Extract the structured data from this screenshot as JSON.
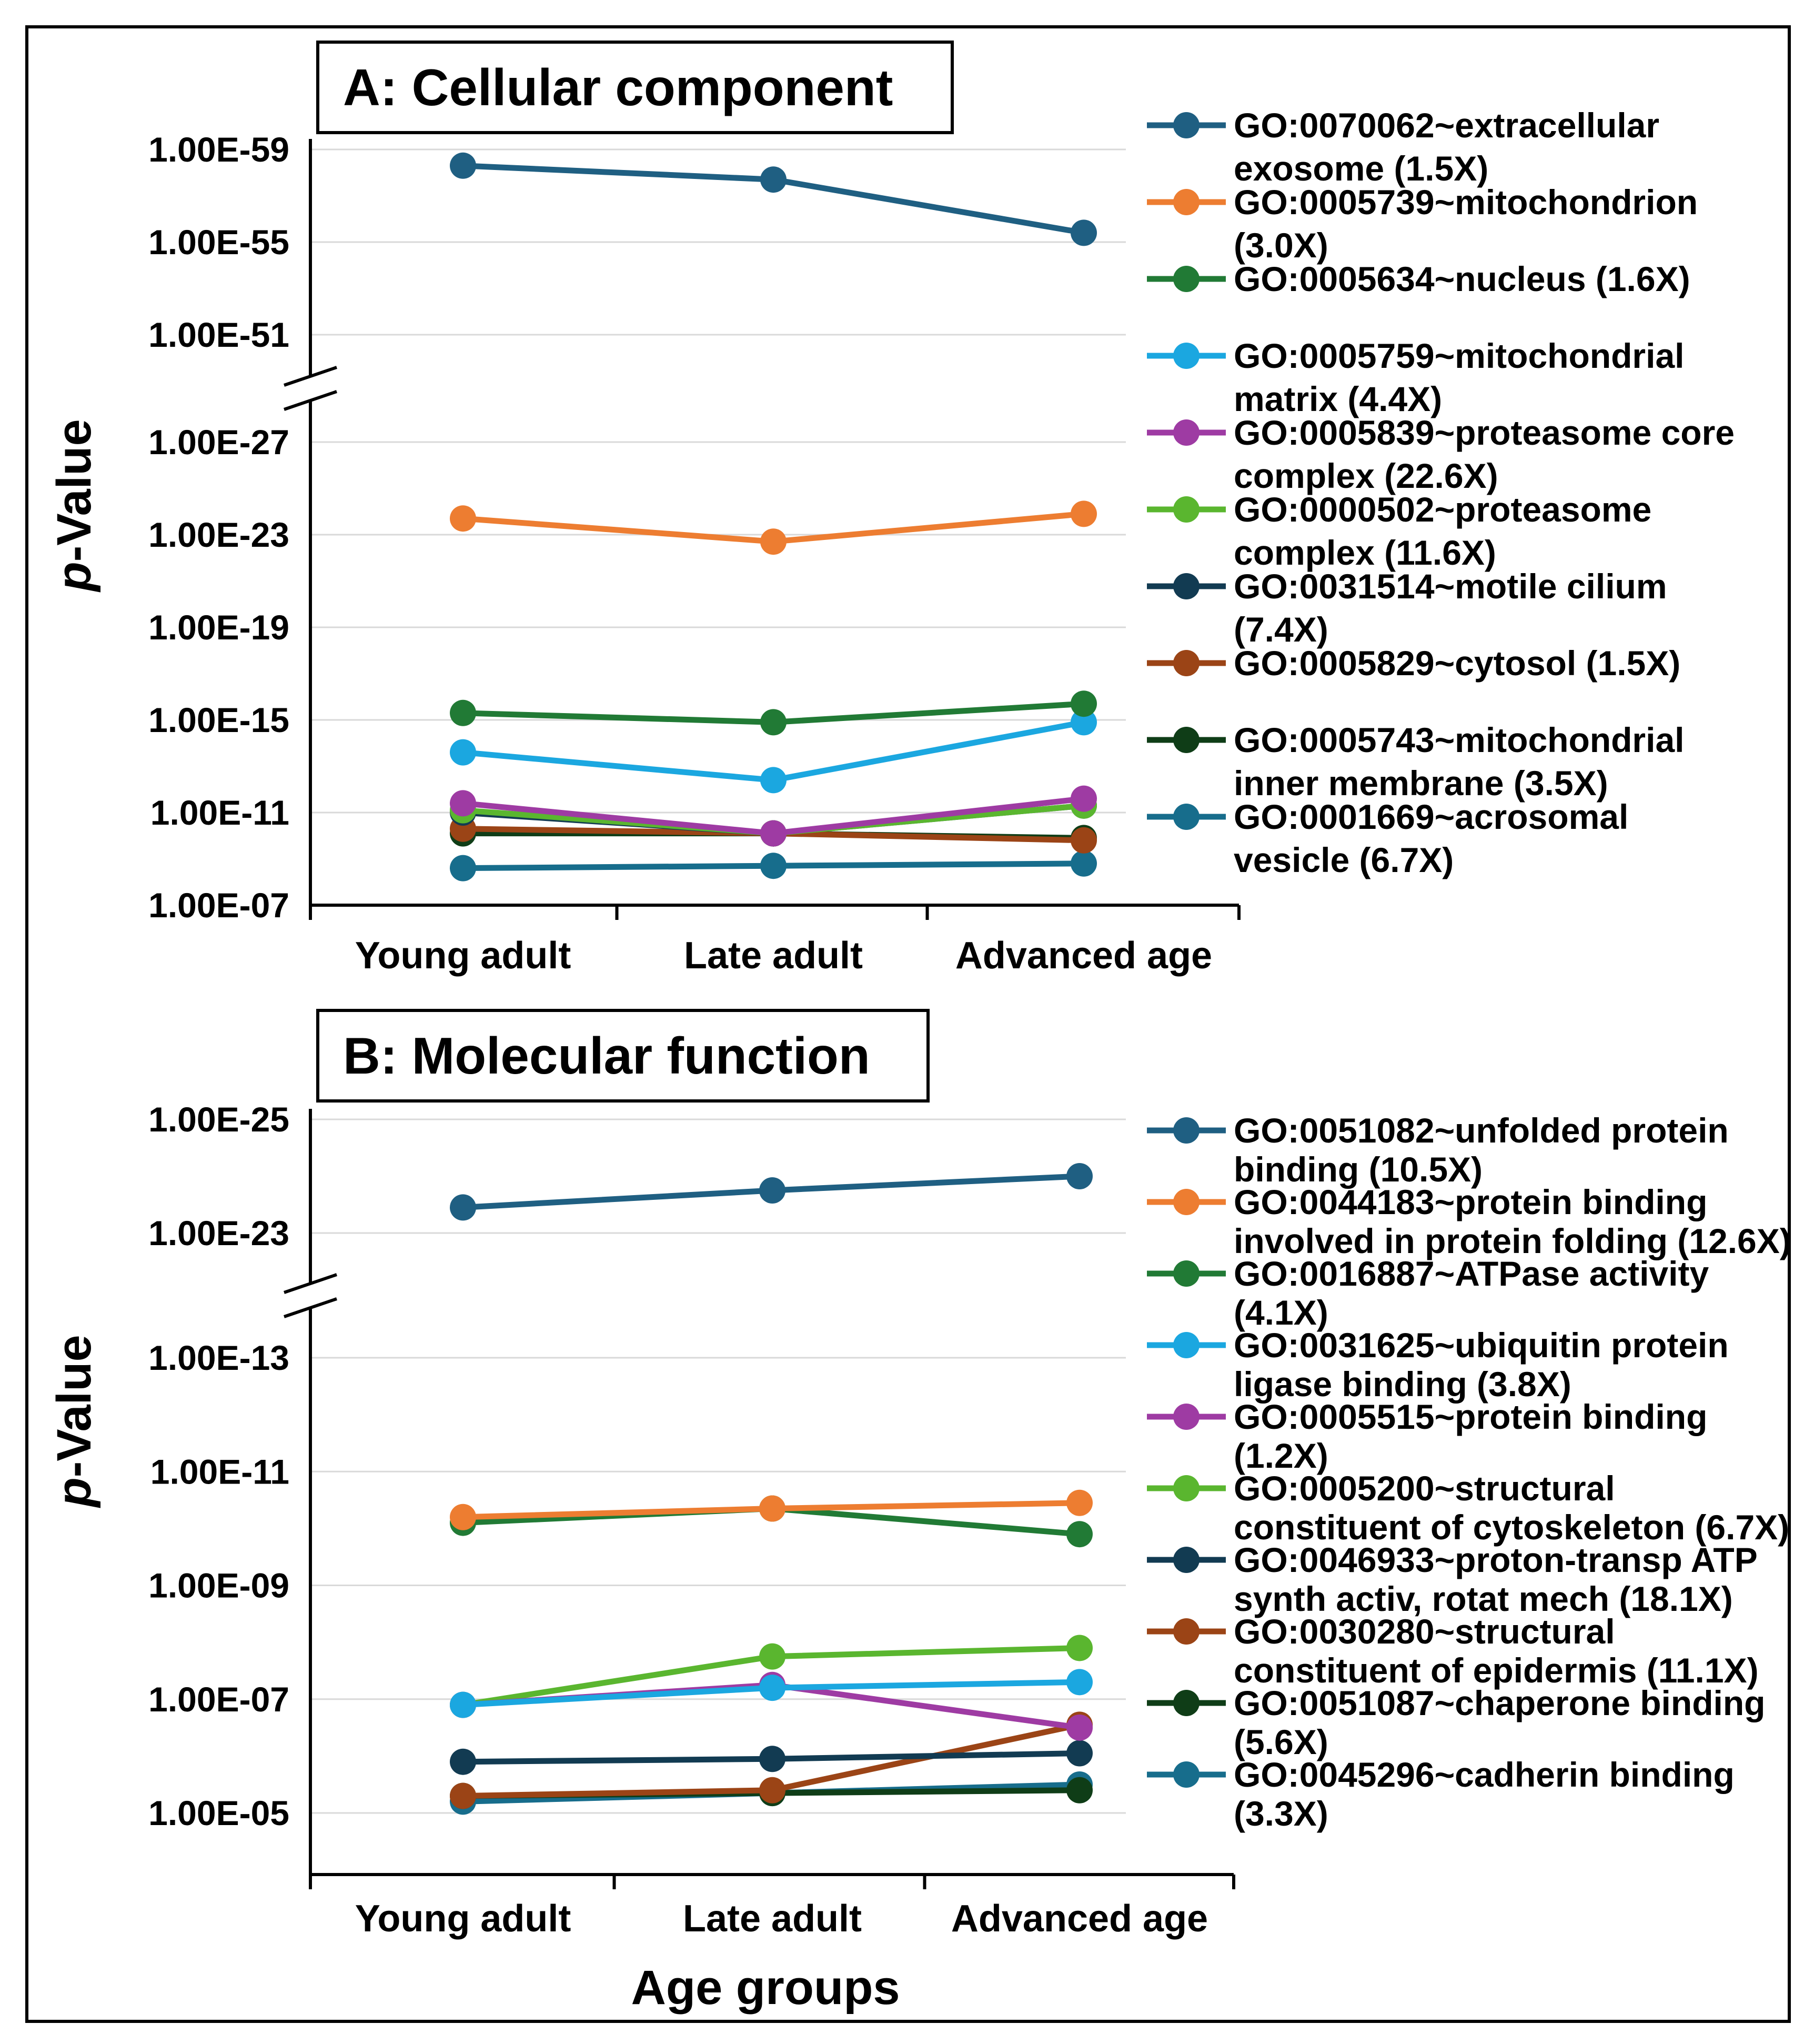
{
  "figure": {
    "xlabel": "Age groups",
    "ylabel_prefix": "p",
    "ylabel_suffix": "-Value"
  },
  "chart_data": [
    {
      "type": "line",
      "title": "A: Cellular component",
      "categories": [
        "Young adult",
        "Late adult",
        "Advanced age"
      ],
      "ylabel": "p-Value",
      "y_scale": "log (-log10 p), broken axis",
      "ylim": [
        7,
        59
      ],
      "y_break": [
        51,
        28.5
      ],
      "ticks_lower": [
        "1.00E-07",
        "1.00E-11",
        "1.00E-15",
        "1.00E-19",
        "1.00E-23",
        "1.00E-27"
      ],
      "ticks_upper": [
        "1.00E-51",
        "1.00E-55",
        "1.00E-59"
      ],
      "series": [
        {
          "name": "GO:0070062~extracellular exosome (1.5X)",
          "legend_lines": [
            "GO:0070062~extracellular",
            "exosome (1.5X)"
          ],
          "color": "#1f5f82",
          "values": [
            58.3,
            57.7,
            55.4
          ]
        },
        {
          "name": "GO:0005739~mitochondrion (3.0X)",
          "legend_lines": [
            "GO:0005739~mitochondrion",
            "(3.0X)"
          ],
          "color": "#ed7d31",
          "values": [
            23.7,
            22.7,
            23.9
          ]
        },
        {
          "name": "GO:0005634~nucleus (1.6X)",
          "legend_lines": [
            "GO:0005634~nucleus (1.6X)"
          ],
          "color": "#217a35",
          "values": [
            15.3,
            14.9,
            15.7
          ]
        },
        {
          "name": "GO:0005759~mitochondrial matrix (4.4X)",
          "legend_lines": [
            "GO:0005759~mitochondrial",
            "matrix (4.4X)"
          ],
          "color": "#1ba7e0",
          "values": [
            13.6,
            12.4,
            14.9
          ]
        },
        {
          "name": "GO:0005839~proteasome core complex (22.6X)",
          "legend_lines": [
            "GO:0005839~proteasome core",
            "complex (22.6X)"
          ],
          "color": "#9e3ba3",
          "values": [
            11.4,
            10.1,
            11.6
          ]
        },
        {
          "name": "GO:0000502~proteasome complex (11.6X)",
          "legend_lines": [
            "GO:0000502~proteasome",
            "complex (11.6X)"
          ],
          "color": "#5ab62f",
          "values": [
            11.1,
            10.1,
            11.3
          ]
        },
        {
          "name": "GO:0031514~motile cilium (7.4X)",
          "legend_lines": [
            "GO:0031514~motile cilium",
            "(7.4X)"
          ],
          "color": "#123b52",
          "values": [
            11.0,
            10.1,
            11.3
          ]
        },
        {
          "name": "GO:0005829~cytosol (1.5X)",
          "legend_lines": [
            "GO:0005829~cytosol (1.5X)"
          ],
          "color": "#9b4416",
          "values": [
            10.3,
            10.1,
            9.8
          ]
        },
        {
          "name": "GO:0005743~mitochondrial inner membrane (3.5X)",
          "legend_lines": [
            "GO:0005743~mitochondrial",
            "inner membrane (3.5X)"
          ],
          "color": "#0f3d17",
          "values": [
            10.1,
            10.1,
            9.9
          ]
        },
        {
          "name": "GO:0001669~acrosomal vesicle (6.7X)",
          "legend_lines": [
            "GO:0001669~acrosomal",
            "vesicle (6.7X)"
          ],
          "color": "#176d8c",
          "values": [
            8.6,
            8.7,
            8.8
          ]
        }
      ]
    },
    {
      "type": "line",
      "title": "B: Molecular function",
      "categories": [
        "Young adult",
        "Late adult",
        "Advanced age"
      ],
      "ylabel": "p-Value",
      "xlabel": "Age groups",
      "y_scale": "log (-log10 p), broken axis",
      "ylim": [
        4,
        25
      ],
      "y_break": [
        23,
        13.5
      ],
      "ticks_lower": [
        "1.00E-05",
        "1.00E-07",
        "1.00E-09",
        "1.00E-11",
        "1.00E-13"
      ],
      "ticks_upper": [
        "1.00E-23",
        "1.00E-25"
      ],
      "series": [
        {
          "name": "GO:0051082~unfolded protein binding (10.5X)",
          "legend_lines": [
            "GO:0051082~unfolded protein",
            "binding (10.5X)"
          ],
          "color": "#1f5f82",
          "values": [
            23.45,
            23.75,
            24.0
          ]
        },
        {
          "name": "GO:0044183~protein binding involved in protein folding (12.6X)",
          "legend_lines": [
            "GO:0044183~protein binding",
            "involved in protein folding (12.6X)"
          ],
          "color": "#ed7d31",
          "values": [
            10.2,
            10.35,
            10.45
          ]
        },
        {
          "name": "GO:0016887~ATPase activity (4.1X)",
          "legend_lines": [
            "GO:0016887~ATPase activity",
            "(4.1X)"
          ],
          "color": "#217a35",
          "values": [
            10.1,
            10.35,
            9.9
          ]
        },
        {
          "name": "GO:0031625~ubiquitin protein ligase binding (3.8X)",
          "legend_lines": [
            "GO:0031625~ubiquitin protein",
            "ligase binding (3.8X)"
          ],
          "color": "#1ba7e0",
          "values": [
            6.9,
            7.2,
            7.3
          ]
        },
        {
          "name": "GO:0005515~protein binding (1.2X)",
          "legend_lines": [
            "GO:0005515~protein binding",
            "(1.2X)"
          ],
          "color": "#9e3ba3",
          "values": [
            6.9,
            7.25,
            6.5
          ]
        },
        {
          "name": "GO:0005200~structural constituent of cytoskeleton (6.7X)",
          "legend_lines": [
            "GO:0005200~structural",
            "constituent of cytoskeleton (6.7X)"
          ],
          "color": "#5ab62f",
          "values": [
            6.9,
            7.75,
            7.9
          ]
        },
        {
          "name": "GO:0046933~proton-transp ATP synth activ, rotat mech (18.1X)",
          "legend_lines": [
            "GO:0046933~proton-transp ATP",
            "synth activ, rotat mech (18.1X)"
          ],
          "color": "#123b52",
          "values": [
            5.9,
            5.95,
            6.05
          ]
        },
        {
          "name": "GO:0030280~structural constituent of epidermis (11.1X)",
          "legend_lines": [
            "GO:0030280~structural",
            "constituent of epidermis (11.1X)"
          ],
          "color": "#9b4416",
          "values": [
            5.3,
            5.4,
            6.55
          ]
        },
        {
          "name": "GO:0051087~chaperone binding (5.6X)",
          "legend_lines": [
            "GO:0051087~chaperone binding",
            "(5.6X)"
          ],
          "color": "#0f3d17",
          "values": [
            5.3,
            5.35,
            5.4
          ]
        },
        {
          "name": "GO:0045296~cadherin binding (3.3X)",
          "legend_lines": [
            "GO:0045296~cadherin binding",
            "(3.3X)"
          ],
          "color": "#176d8c",
          "values": [
            5.2,
            5.35,
            5.5
          ]
        }
      ]
    }
  ]
}
